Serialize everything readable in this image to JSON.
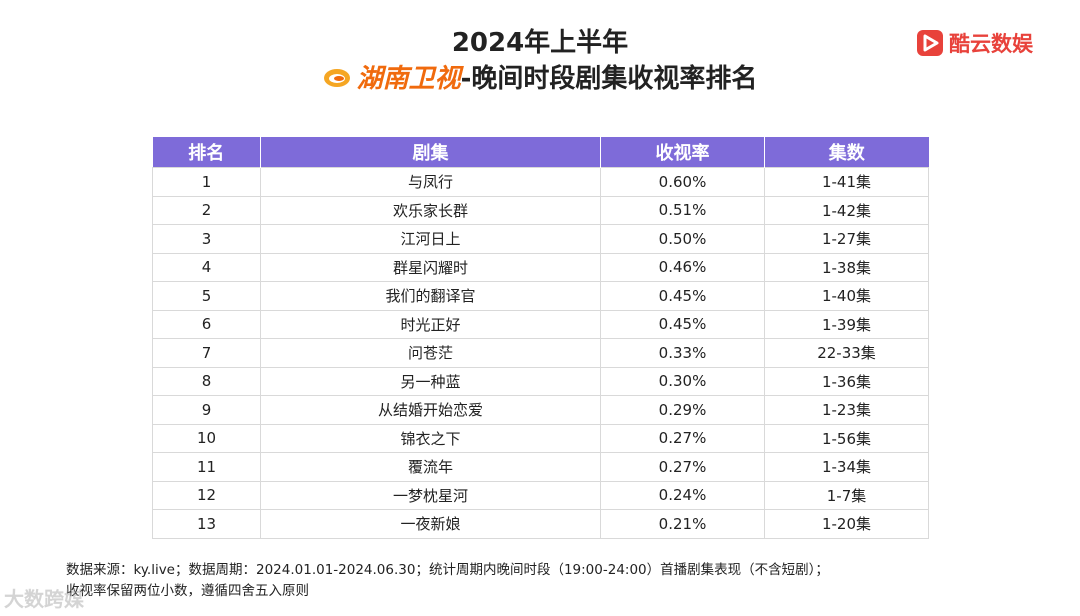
{
  "header": {
    "title_line1": "2024年上半年",
    "channel_name": "湖南卫视",
    "title_line2_rest": "-晚间时段剧集收视率排名"
  },
  "brand": {
    "name": "酷云数娱",
    "color": "#e8423b",
    "icon": "play-logo-icon"
  },
  "channel_logo_icon": "hunan-tv-logo-icon",
  "colors": {
    "header_bg": "#7e6bd9",
    "channel_text": "#f06a0d"
  },
  "table": {
    "headers": [
      "排名",
      "剧集",
      "收视率",
      "集数"
    ],
    "rows": [
      [
        "1",
        "与凤行",
        "0.60%",
        "1-41集"
      ],
      [
        "2",
        "欢乐家长群",
        "0.51%",
        "1-42集"
      ],
      [
        "3",
        "江河日上",
        "0.50%",
        "1-27集"
      ],
      [
        "4",
        "群星闪耀时",
        "0.46%",
        "1-38集"
      ],
      [
        "5",
        "我们的翻译官",
        "0.45%",
        "1-40集"
      ],
      [
        "6",
        "时光正好",
        "0.45%",
        "1-39集"
      ],
      [
        "7",
        "问苍茫",
        "0.33%",
        "22-33集"
      ],
      [
        "8",
        "另一种蓝",
        "0.30%",
        "1-36集"
      ],
      [
        "9",
        "从结婚开始恋爱",
        "0.29%",
        "1-23集"
      ],
      [
        "10",
        "锦衣之下",
        "0.27%",
        "1-56集"
      ],
      [
        "11",
        "覆流年",
        "0.27%",
        "1-34集"
      ],
      [
        "12",
        "一梦枕星河",
        "0.24%",
        "1-7集"
      ],
      [
        "13",
        "一夜新娘",
        "0.21%",
        "1-20集"
      ]
    ]
  },
  "chart_data": {
    "type": "table",
    "title": "2024年上半年 湖南卫视-晚间时段剧集收视率排名",
    "columns": [
      "排名",
      "剧集",
      "收视率",
      "集数"
    ],
    "rows": [
      {
        "rank": 1,
        "drama": "与凤行",
        "rating_pct": 0.6,
        "episodes": "1-41集"
      },
      {
        "rank": 2,
        "drama": "欢乐家长群",
        "rating_pct": 0.51,
        "episodes": "1-42集"
      },
      {
        "rank": 3,
        "drama": "江河日上",
        "rating_pct": 0.5,
        "episodes": "1-27集"
      },
      {
        "rank": 4,
        "drama": "群星闪耀时",
        "rating_pct": 0.46,
        "episodes": "1-38集"
      },
      {
        "rank": 5,
        "drama": "我们的翻译官",
        "rating_pct": 0.45,
        "episodes": "1-40集"
      },
      {
        "rank": 6,
        "drama": "时光正好",
        "rating_pct": 0.45,
        "episodes": "1-39集"
      },
      {
        "rank": 7,
        "drama": "问苍茫",
        "rating_pct": 0.33,
        "episodes": "22-33集"
      },
      {
        "rank": 8,
        "drama": "另一种蓝",
        "rating_pct": 0.3,
        "episodes": "1-36集"
      },
      {
        "rank": 9,
        "drama": "从结婚开始恋爱",
        "rating_pct": 0.29,
        "episodes": "1-23集"
      },
      {
        "rank": 10,
        "drama": "锦衣之下",
        "rating_pct": 0.27,
        "episodes": "1-56集"
      },
      {
        "rank": 11,
        "drama": "覆流年",
        "rating_pct": 0.27,
        "episodes": "1-34集"
      },
      {
        "rank": 12,
        "drama": "一梦枕星河",
        "rating_pct": 0.24,
        "episodes": "1-7集"
      },
      {
        "rank": 13,
        "drama": "一夜新娘",
        "rating_pct": 0.21,
        "episodes": "1-20集"
      }
    ]
  },
  "footer": {
    "line1": "数据来源：ky.live；数据周期：2024.01.01-2024.06.30；统计周期内晚间时段（19:00-24:00）首播剧集表现（不含短剧）；",
    "line2": "收视率保留两位小数，遵循四舍五入原则"
  },
  "watermark": "大数跨媒"
}
